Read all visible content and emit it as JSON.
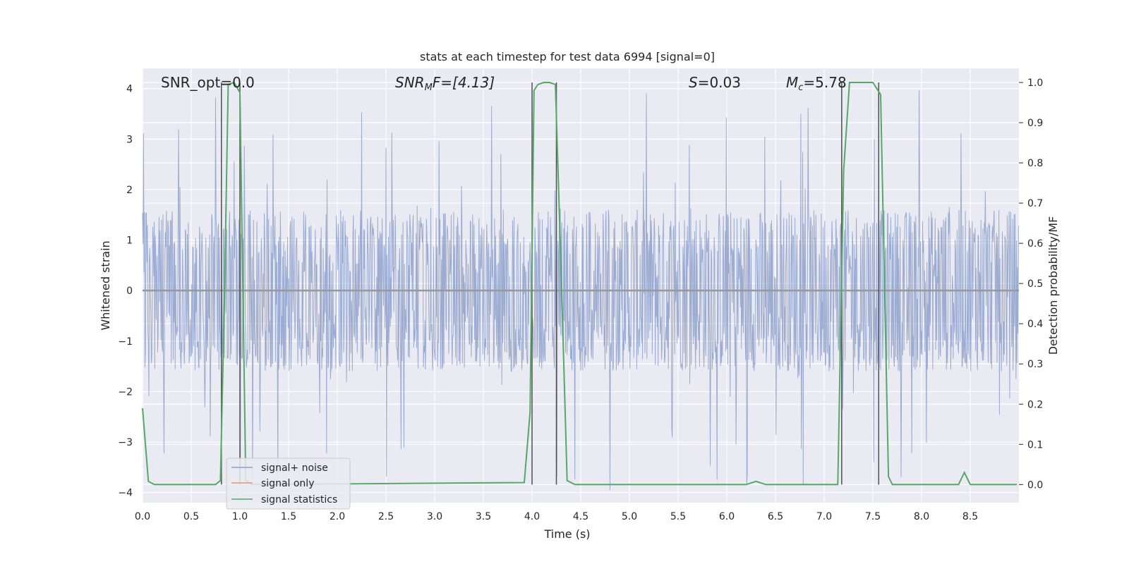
{
  "chart_data": {
    "type": "line",
    "title": "stats at each timestep for test data 6994 [signal=0]",
    "xlabel": "Time (s)",
    "ylabel": "Whitened strain",
    "y2label": "Detection probability/MF",
    "xlim": [
      0.0,
      9.0
    ],
    "ylim": [
      -4.2,
      4.4
    ],
    "y2lim": [
      -0.045,
      1.035
    ],
    "xticks": [
      "0.0",
      "0.5",
      "1.0",
      "1.5",
      "2.0",
      "2.5",
      "3.0",
      "3.5",
      "4.0",
      "4.5",
      "5.0",
      "5.5",
      "6.0",
      "6.5",
      "7.0",
      "7.5",
      "8.0",
      "8.5"
    ],
    "xtick_values": [
      0.0,
      0.5,
      1.0,
      1.5,
      2.0,
      2.5,
      3.0,
      3.5,
      4.0,
      4.5,
      5.0,
      5.5,
      6.0,
      6.5,
      7.0,
      7.5,
      8.0,
      8.5
    ],
    "yticks": [
      "4",
      "3",
      "2",
      "1",
      "0",
      "−1",
      "−2",
      "−3",
      "−4"
    ],
    "ytick_values": [
      4,
      3,
      2,
      1,
      0,
      -1,
      -2,
      -3,
      -4
    ],
    "y2ticks": [
      "1.0",
      "0.9",
      "0.8",
      "0.7",
      "0.6",
      "0.5",
      "0.4",
      "0.3",
      "0.2",
      "0.1",
      "0.0"
    ],
    "y2tick_values": [
      1.0,
      0.9,
      0.8,
      0.7,
      0.6,
      0.5,
      0.4,
      0.3,
      0.2,
      0.1,
      0.0
    ],
    "grid": true,
    "legend_position": "lower-left",
    "annotations": {
      "snr_opt": "SNR_opt=0.0",
      "snr_mf_main": "SNR",
      "snr_mf_sub": "M",
      "snr_mf_tail": "F=[4.13]",
      "s_main": "S",
      "s_tail": "=0.03",
      "mc_main": "M",
      "mc_sub": "c",
      "mc_tail": "=5.78"
    },
    "series": [
      {
        "name": "signal+ noise",
        "color": "#8da0cb",
        "kind": "noise",
        "envelope_abs": 1.6,
        "peak_max": 4.0,
        "peak_min": -4.1
      },
      {
        "name": "signal only",
        "color": "#e8947a",
        "kind": "flat",
        "values_y": 0.0
      },
      {
        "name": "signal statistics",
        "color": "#55a868",
        "axis": "right",
        "x": [
          0.0,
          0.06,
          0.12,
          0.75,
          0.8,
          0.84,
          0.88,
          0.94,
          1.0,
          1.06,
          1.12,
          3.92,
          3.98,
          4.02,
          4.06,
          4.12,
          4.18,
          4.24,
          4.3,
          4.36,
          4.44,
          6.2,
          6.3,
          6.4,
          7.14,
          7.2,
          7.26,
          7.34,
          7.5,
          7.58,
          7.66,
          7.7,
          8.38,
          8.44,
          8.5,
          8.56,
          8.98
        ],
        "y": [
          0.19,
          0.008,
          0.0,
          0.0,
          0.01,
          0.45,
          0.995,
          1.0,
          0.975,
          0.01,
          0.0,
          0.005,
          0.18,
          0.98,
          0.995,
          1.0,
          1.0,
          0.995,
          0.52,
          0.01,
          0.0,
          0.0,
          0.008,
          0.0,
          0.0,
          0.78,
          1.0,
          1.0,
          1.0,
          0.97,
          0.02,
          0.0,
          0.0,
          0.03,
          0.0,
          0.0,
          0.0
        ]
      }
    ],
    "vlines_x": [
      0.81,
      1.0,
      4.0,
      4.25,
      7.18,
      7.56
    ],
    "vline_color": "#505050"
  }
}
